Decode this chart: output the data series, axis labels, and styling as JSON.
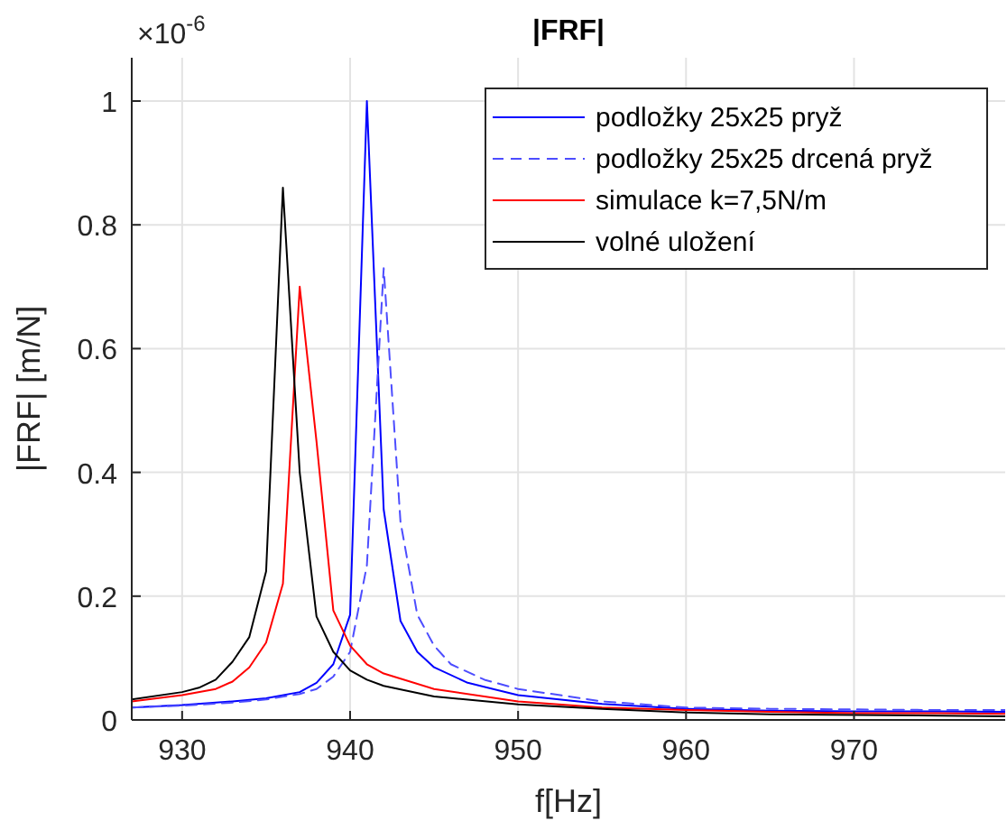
{
  "chart_data": {
    "type": "line",
    "title": "|FRF|",
    "xlabel": "f[Hz]",
    "ylabel": "|FRF| [m/N]",
    "annotations": [
      "×10$^{-6}$"
    ],
    "xlim": [
      927,
      979
    ],
    "xticks": [
      930,
      940,
      950,
      960,
      970
    ],
    "ylim": [
      0,
      1.07
    ],
    "yticks": [
      0,
      0.2,
      0.4,
      0.6,
      0.8,
      1
    ],
    "grid": true,
    "legend": "top right",
    "marker": "none",
    "series": [
      {
        "name": "podložky 25x25 pryž",
        "color": "#0000ff",
        "line_style": "solid",
        "x": [
          927,
          930,
          933,
          935,
          937,
          938,
          939,
          940,
          941,
          942,
          943,
          944,
          945,
          947,
          950,
          955,
          960,
          965,
          970,
          975,
          979
        ],
        "values": [
          0.02,
          0.024,
          0.03,
          0.035,
          0.045,
          0.06,
          0.09,
          0.17,
          1.0,
          0.34,
          0.16,
          0.11,
          0.085,
          0.06,
          0.04,
          0.026,
          0.018,
          0.015,
          0.014,
          0.014,
          0.013
        ]
      },
      {
        "name": "podložky 25x25 drcená pryž",
        "color": "#4d4dff",
        "line_style": "dashed",
        "x": [
          927,
          930,
          933,
          935,
          937,
          938,
          939,
          940,
          941,
          942,
          943,
          944,
          945,
          946,
          948,
          950,
          955,
          960,
          965,
          970,
          975,
          979
        ],
        "values": [
          0.02,
          0.023,
          0.028,
          0.033,
          0.042,
          0.05,
          0.07,
          0.11,
          0.25,
          0.73,
          0.32,
          0.17,
          0.12,
          0.09,
          0.065,
          0.05,
          0.03,
          0.02,
          0.018,
          0.017,
          0.016,
          0.016
        ]
      },
      {
        "name": "simulace k=7,5N/m",
        "color": "#ff0000",
        "line_style": "solid",
        "x": [
          927,
          930,
          932,
          933,
          934,
          935,
          936,
          937,
          938,
          939,
          940,
          941,
          942,
          945,
          950,
          955,
          960,
          965,
          970,
          975,
          979
        ],
        "values": [
          0.03,
          0.04,
          0.05,
          0.062,
          0.085,
          0.125,
          0.22,
          0.7,
          0.45,
          0.177,
          0.12,
          0.09,
          0.075,
          0.05,
          0.03,
          0.02,
          0.016,
          0.013,
          0.011,
          0.011,
          0.01
        ]
      },
      {
        "name": "volné uložení",
        "color": "#000000",
        "line_style": "solid",
        "x": [
          927,
          930,
          931,
          932,
          933,
          934,
          935,
          936,
          937,
          938,
          939,
          940,
          941,
          942,
          945,
          950,
          955,
          960,
          965,
          970,
          975,
          979
        ],
        "values": [
          0.033,
          0.045,
          0.052,
          0.065,
          0.094,
          0.134,
          0.24,
          0.86,
          0.4,
          0.167,
          0.11,
          0.08,
          0.065,
          0.055,
          0.038,
          0.025,
          0.018,
          0.012,
          0.009,
          0.008,
          0.007,
          0.006
        ]
      }
    ]
  }
}
